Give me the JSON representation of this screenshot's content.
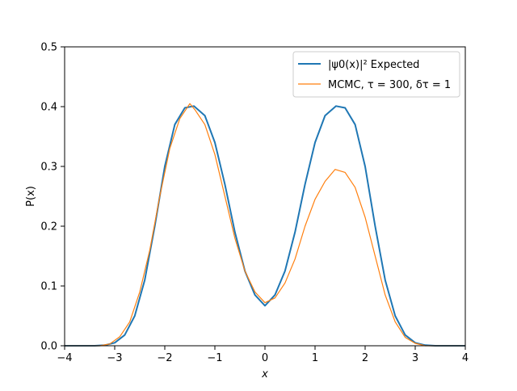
{
  "chart_data": {
    "type": "line",
    "title": "",
    "xlabel": "x",
    "ylabel": "P(x)",
    "xlim": [
      -4,
      4
    ],
    "ylim": [
      0,
      0.5
    ],
    "x_ticks": [
      -4,
      -3,
      -2,
      -1,
      0,
      1,
      2,
      3,
      4
    ],
    "x_tick_labels": [
      "−4",
      "−3",
      "−2",
      "−1",
      "0",
      "1",
      "2",
      "3",
      "4"
    ],
    "y_ticks": [
      0,
      0.1,
      0.2,
      0.3,
      0.4,
      0.5
    ],
    "y_tick_labels": [
      "0.0",
      "0.1",
      "0.2",
      "0.3",
      "0.4",
      "0.5"
    ],
    "grid": false,
    "legend_position": "top-right",
    "series": [
      {
        "name": "|ψ0(x)|² Expected",
        "color": "#1f77b4",
        "x": [
          -4.0,
          -3.4,
          -3.2,
          -3.0,
          -2.8,
          -2.6,
          -2.4,
          -2.2,
          -2.0,
          -1.8,
          -1.6,
          -1.42,
          -1.2,
          -1.0,
          -0.8,
          -0.6,
          -0.4,
          -0.2,
          0.0,
          0.2,
          0.4,
          0.6,
          0.8,
          1.0,
          1.2,
          1.42,
          1.6,
          1.8,
          2.0,
          2.2,
          2.4,
          2.6,
          2.8,
          3.0,
          3.2,
          3.4,
          4.0
        ],
        "y": [
          0.0,
          0.0,
          0.001,
          0.005,
          0.018,
          0.05,
          0.11,
          0.2,
          0.3,
          0.37,
          0.398,
          0.401,
          0.385,
          0.34,
          0.27,
          0.19,
          0.125,
          0.085,
          0.067,
          0.085,
          0.125,
          0.19,
          0.27,
          0.34,
          0.385,
          0.401,
          0.398,
          0.37,
          0.3,
          0.2,
          0.11,
          0.05,
          0.018,
          0.005,
          0.001,
          0.0,
          0.0
        ]
      },
      {
        "name": "MCMC, τ = 300, δτ = 1",
        "color": "#ff7f0e",
        "x": [
          -4.0,
          -3.3,
          -3.1,
          -2.9,
          -2.7,
          -2.5,
          -2.3,
          -2.1,
          -1.9,
          -1.7,
          -1.5,
          -1.4,
          -1.2,
          -1.0,
          -0.8,
          -0.6,
          -0.4,
          -0.2,
          0.0,
          0.2,
          0.4,
          0.6,
          0.8,
          1.0,
          1.2,
          1.4,
          1.6,
          1.8,
          2.0,
          2.2,
          2.4,
          2.6,
          2.8,
          3.0,
          3.2,
          4.0
        ],
        "y": [
          0.0,
          0.0,
          0.003,
          0.015,
          0.04,
          0.09,
          0.16,
          0.25,
          0.33,
          0.38,
          0.405,
          0.395,
          0.37,
          0.32,
          0.25,
          0.18,
          0.125,
          0.09,
          0.072,
          0.08,
          0.105,
          0.145,
          0.2,
          0.245,
          0.275,
          0.295,
          0.29,
          0.265,
          0.215,
          0.15,
          0.085,
          0.04,
          0.014,
          0.004,
          0.0,
          0.0
        ]
      }
    ]
  }
}
